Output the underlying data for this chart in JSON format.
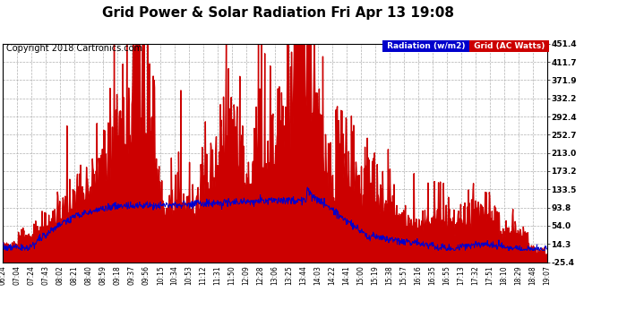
{
  "title": "Grid Power & Solar Radiation Fri Apr 13 19:08",
  "copyright": "Copyright 2018 Cartronics.com",
  "legend_radiation": "Radiation (w/m2)",
  "legend_grid": "Grid (AC Watts)",
  "y_ticks": [
    451.4,
    411.7,
    371.9,
    332.2,
    292.4,
    252.7,
    213.0,
    173.2,
    133.5,
    93.8,
    54.0,
    14.3,
    -25.4
  ],
  "y_min": -25.4,
  "y_max": 451.4,
  "x_labels": [
    "06:24",
    "07:04",
    "07:24",
    "07:43",
    "08:02",
    "08:21",
    "08:40",
    "08:59",
    "09:18",
    "09:37",
    "09:56",
    "10:15",
    "10:34",
    "10:53",
    "11:12",
    "11:31",
    "11:50",
    "12:09",
    "12:28",
    "13:06",
    "13:25",
    "13:44",
    "14:03",
    "14:22",
    "14:41",
    "15:00",
    "15:19",
    "15:38",
    "15:57",
    "16:16",
    "16:35",
    "16:55",
    "17:13",
    "17:32",
    "17:51",
    "18:10",
    "18:29",
    "18:48",
    "19:07"
  ],
  "bg_color": "#ffffff",
  "plot_bg_color": "#ffffff",
  "grid_color": "#b0b0b0",
  "fill_color_red": "#cc0000",
  "line_color_blue": "#0000cc",
  "legend_radiation_bg": "#0000cc",
  "legend_grid_bg": "#cc0000",
  "title_fontsize": 11,
  "axis_fontsize": 7,
  "copyright_fontsize": 7
}
